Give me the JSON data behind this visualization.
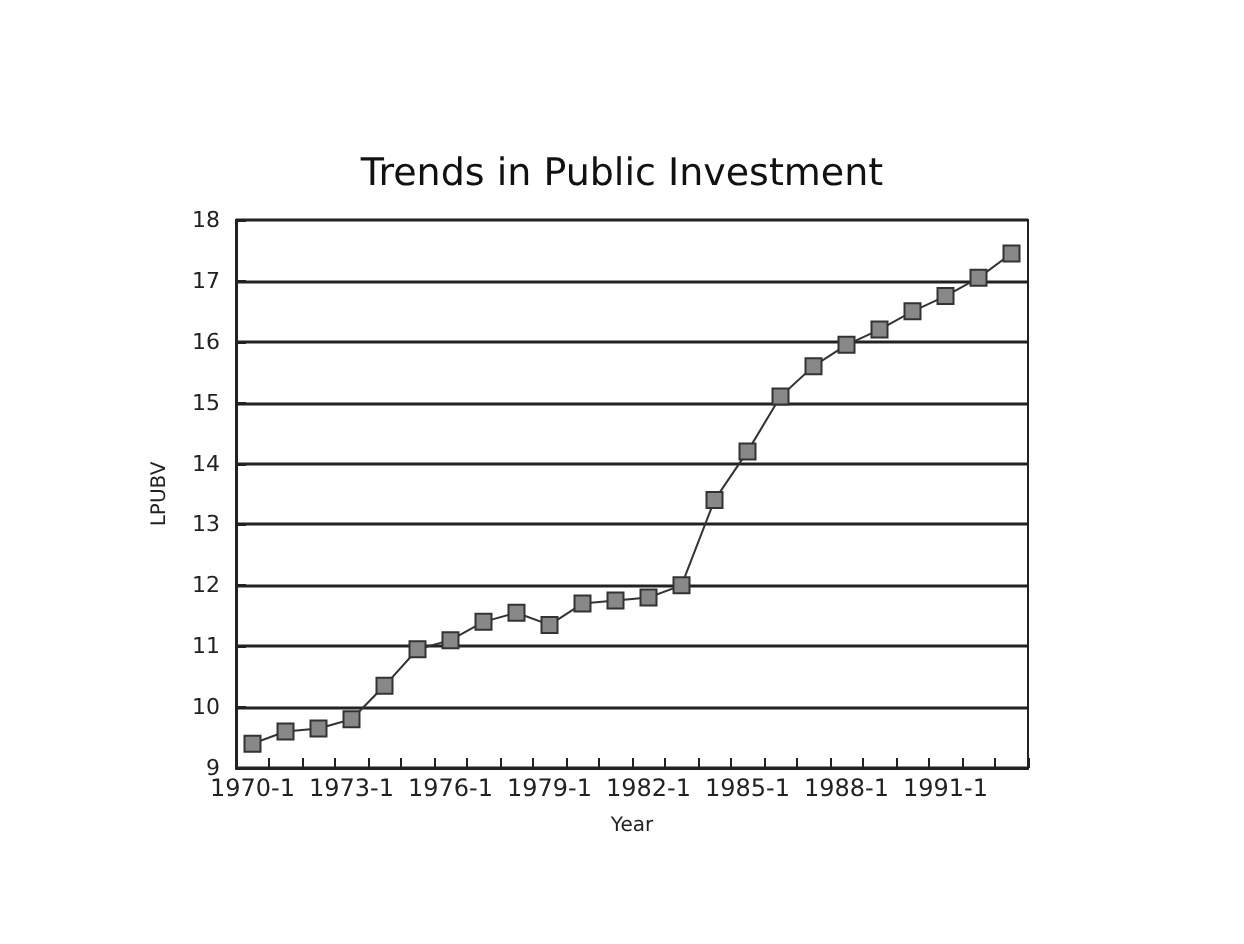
{
  "chart_data": {
    "type": "line",
    "title": "Trends in Public Investment",
    "xlabel": "Year",
    "ylabel": "LPUBV",
    "categories": [
      "1970-1",
      null,
      null,
      "1973-1",
      null,
      null,
      "1976-1",
      null,
      null,
      "1979-1",
      null,
      null,
      "1982-1",
      null,
      null,
      "1985-1",
      null,
      null,
      "1988-1",
      null,
      null,
      "1991-1",
      null,
      null
    ],
    "series": [
      {
        "color": "#333333",
        "values": [
          9.4,
          9.6,
          9.65,
          9.8,
          10.35,
          10.95,
          11.1,
          11.4,
          11.55,
          11.35,
          11.7,
          11.75,
          11.8,
          12.0,
          13.4,
          14.2,
          15.1,
          15.6,
          15.95,
          16.2,
          16.5,
          16.75,
          17.05,
          17.45
        ]
      }
    ],
    "ylim": [
      9,
      18
    ],
    "yticks": [
      9,
      10,
      11,
      12,
      13,
      14,
      15,
      16,
      17,
      18
    ],
    "grid": "y",
    "marker": "square",
    "line_style": "solid"
  }
}
